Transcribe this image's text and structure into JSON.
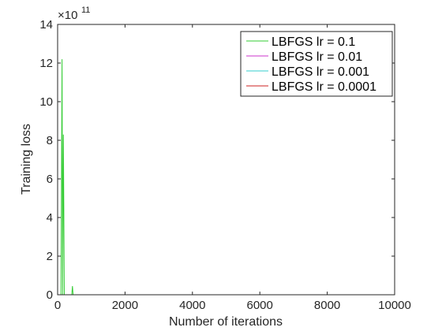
{
  "chart_data": {
    "type": "line",
    "title": "",
    "xlabel": "Number of iterations",
    "ylabel": "Training loss",
    "xlim": [
      0,
      10000
    ],
    "ylim": [
      0,
      1400000000000
    ],
    "y_exponent_label": {
      "base": "×10",
      "power": "11"
    },
    "xticks": [
      0,
      2000,
      4000,
      6000,
      8000,
      10000
    ],
    "xtick_labels": [
      "0",
      "2000",
      "4000",
      "6000",
      "8000",
      "10000"
    ],
    "yticks": [
      0,
      200000000000,
      400000000000,
      600000000000,
      800000000000,
      1000000000000,
      1200000000000,
      1400000000000
    ],
    "ytick_labels": [
      "0",
      "2",
      "4",
      "6",
      "8",
      "10",
      "12",
      "14"
    ],
    "grid": false,
    "legend_position": "top-right",
    "series": [
      {
        "name": "LBFGS lr = 0.1",
        "color": "#33cc33",
        "x": [
          0,
          100,
          130,
          150,
          170,
          200,
          300,
          420,
          440,
          460,
          480,
          600,
          9400
        ],
        "y": [
          0,
          0,
          1220000000000,
          0,
          830000000000,
          0,
          0,
          0,
          45000000000,
          0,
          0,
          0,
          0
        ]
      },
      {
        "name": "LBFGS lr = 0.01",
        "color": "#cc33cc",
        "x": [
          0,
          9400
        ],
        "y": [
          0,
          0
        ]
      },
      {
        "name": "LBFGS lr = 0.001",
        "color": "#33cccc",
        "x": [
          0,
          9400
        ],
        "y": [
          0,
          0
        ]
      },
      {
        "name": "LBFGS lr = 0.0001",
        "color": "#cc2222",
        "x": [
          0,
          9400
        ],
        "y": [
          0,
          0
        ]
      }
    ]
  }
}
